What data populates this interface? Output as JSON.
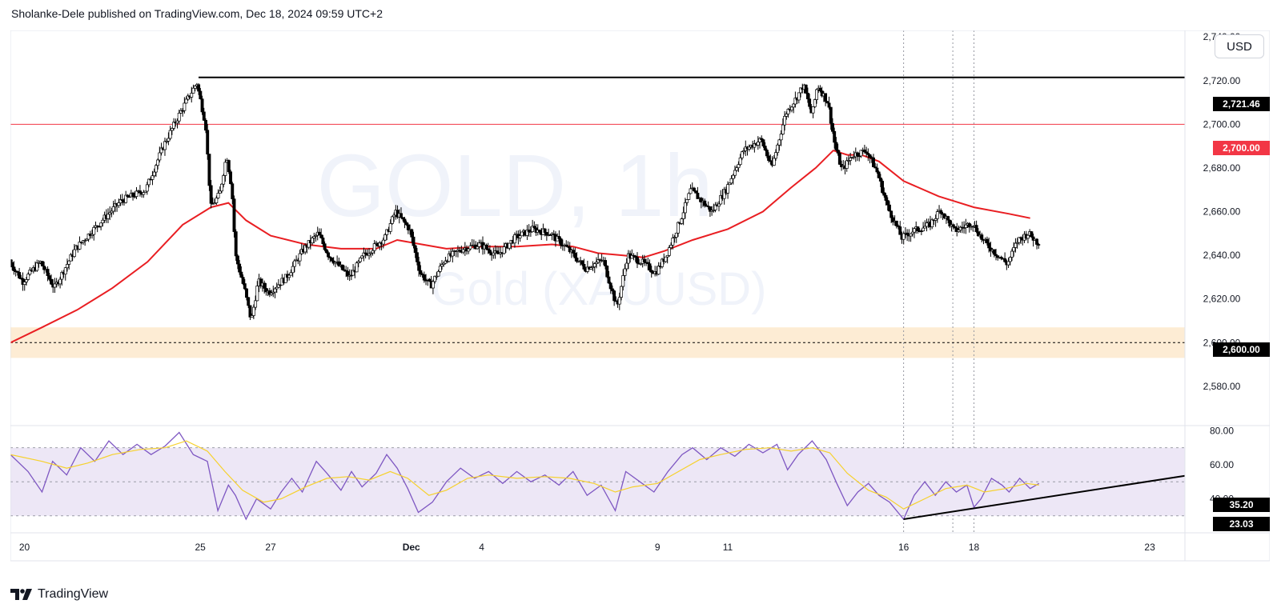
{
  "header": {
    "published_text": "Sholanke-Dele published on TradingView.com, Dec 18, 2024 09:59 UTC+2"
  },
  "watermark": {
    "symbol": "GOLD, 1h",
    "name": "Gold (XAUUSD)"
  },
  "currency_button": "USD",
  "footer": {
    "brand": "TradingView"
  },
  "colors": {
    "resistance_line": "#000000",
    "level_2700": "#f23645",
    "ma_line": "#e91e22",
    "support_zone": "#fdecd4",
    "rsi_line": "#7e57c2",
    "rsi_ma": "#f6d12c",
    "rsi_band": "#ede7f6",
    "trendline": "#000000",
    "candle": "#000000"
  },
  "price_labels": [
    {
      "text": "2,721.46",
      "value": 2721.46,
      "bg": "#000000"
    },
    {
      "text": "2,700.00",
      "value": 2700.0,
      "bg": "#f23645"
    },
    {
      "text": "2,600.00",
      "value": 2600.0,
      "bg": "#000000"
    }
  ],
  "rsi_labels": [
    {
      "text": "35.20",
      "value": 35.2,
      "bg": "#000000"
    },
    {
      "text": "23.03",
      "value": 23.03,
      "bg": "#000000"
    }
  ],
  "chart_data": [
    {
      "type": "candlestick",
      "title": "GOLD, 1h",
      "subtitle": "Gold (XAUUSD)",
      "currency": "USD",
      "y_ticks": [
        "2,580.00",
        "2,600.00",
        "2,620.00",
        "2,640.00",
        "2,660.00",
        "2,680.00",
        "2,700.00",
        "2,720.00",
        "2,740.00"
      ],
      "y_tick_values": [
        2580,
        2600,
        2620,
        2640,
        2660,
        2680,
        2700,
        2720,
        2740
      ],
      "ylim": [
        2562,
        2743
      ],
      "x_ticks": [
        "20",
        "25",
        "27",
        "Dec",
        "4",
        "9",
        "11",
        "16",
        "18",
        "23"
      ],
      "x_tick_positions": [
        0.0,
        5.0,
        7.0,
        11.0,
        13.0,
        18.0,
        20.0,
        25.0,
        27.0,
        32.0
      ],
      "xlim": [
        -0.4,
        33.0
      ],
      "horizontal_levels": [
        {
          "label": "2,721.46",
          "value": 2721.46,
          "from_x": 4.95
        },
        {
          "label": "2,700.00",
          "value": 2700.0,
          "from_x": -0.4
        },
        {
          "label": "2,600.00",
          "value": 2600.0,
          "from_x": -0.4,
          "style": "dashed"
        }
      ],
      "support_zone": [
        2593,
        2607
      ],
      "vertical_markers_x": [
        25.0,
        26.4,
        27.0
      ],
      "price_path": [
        [
          -0.4,
          2638
        ],
        [
          0.0,
          2628
        ],
        [
          0.5,
          2637
        ],
        [
          0.9,
          2625
        ],
        [
          1.5,
          2643
        ],
        [
          2.2,
          2655
        ],
        [
          2.8,
          2665
        ],
        [
          3.5,
          2670
        ],
        [
          4.0,
          2690
        ],
        [
          4.5,
          2706
        ],
        [
          4.95,
          2719
        ],
        [
          5.2,
          2700
        ],
        [
          5.35,
          2662
        ],
        [
          5.6,
          2668
        ],
        [
          5.8,
          2686
        ],
        [
          5.95,
          2670
        ],
        [
          6.05,
          2640
        ],
        [
          6.3,
          2625
        ],
        [
          6.5,
          2610
        ],
        [
          6.7,
          2628
        ],
        [
          7.0,
          2623
        ],
        [
          7.5,
          2630
        ],
        [
          8.0,
          2643
        ],
        [
          8.4,
          2650
        ],
        [
          8.7,
          2640
        ],
        [
          9.3,
          2630
        ],
        [
          9.7,
          2640
        ],
        [
          10.3,
          2648
        ],
        [
          10.6,
          2660
        ],
        [
          11.0,
          2652
        ],
        [
          11.3,
          2632
        ],
        [
          11.6,
          2626
        ],
        [
          12.0,
          2638
        ],
        [
          12.5,
          2643
        ],
        [
          13.0,
          2645
        ],
        [
          13.5,
          2640
        ],
        [
          14.0,
          2648
        ],
        [
          14.5,
          2652
        ],
        [
          15.0,
          2650
        ],
        [
          15.5,
          2643
        ],
        [
          16.0,
          2634
        ],
        [
          16.5,
          2638
        ],
        [
          16.9,
          2616
        ],
        [
          17.2,
          2640
        ],
        [
          17.6,
          2637
        ],
        [
          18.0,
          2632
        ],
        [
          18.3,
          2640
        ],
        [
          18.7,
          2656
        ],
        [
          19.0,
          2670
        ],
        [
          19.6,
          2660
        ],
        [
          20.0,
          2670
        ],
        [
          20.5,
          2688
        ],
        [
          21.0,
          2693
        ],
        [
          21.3,
          2680
        ],
        [
          21.7,
          2705
        ],
        [
          22.0,
          2712
        ],
        [
          22.2,
          2718
        ],
        [
          22.45,
          2704
        ],
        [
          22.6,
          2718
        ],
        [
          22.9,
          2710
        ],
        [
          23.1,
          2690
        ],
        [
          23.3,
          2679
        ],
        [
          23.6,
          2686
        ],
        [
          24.0,
          2688
        ],
        [
          24.3,
          2678
        ],
        [
          24.6,
          2662
        ],
        [
          25.0,
          2648
        ],
        [
          25.3,
          2651
        ],
        [
          25.8,
          2654
        ],
        [
          26.1,
          2661
        ],
        [
          26.5,
          2651
        ],
        [
          27.0,
          2655
        ],
        [
          27.3,
          2647
        ],
        [
          27.6,
          2642
        ],
        [
          28.0,
          2636
        ],
        [
          28.3,
          2647
        ],
        [
          28.6,
          2650
        ],
        [
          28.85,
          2646
        ]
      ],
      "ma_line": [
        [
          -0.4,
          2600
        ],
        [
          0.5,
          2607
        ],
        [
          1.5,
          2615
        ],
        [
          2.5,
          2625
        ],
        [
          3.5,
          2637
        ],
        [
          4.5,
          2654
        ],
        [
          5.3,
          2662
        ],
        [
          5.8,
          2664
        ],
        [
          6.3,
          2656
        ],
        [
          7.0,
          2649
        ],
        [
          8.0,
          2645
        ],
        [
          9.0,
          2643
        ],
        [
          10.0,
          2643
        ],
        [
          10.6,
          2647
        ],
        [
          11.3,
          2645
        ],
        [
          12.0,
          2643
        ],
        [
          13.0,
          2644
        ],
        [
          14.0,
          2644
        ],
        [
          15.0,
          2645
        ],
        [
          15.6,
          2644
        ],
        [
          16.3,
          2641
        ],
        [
          17.0,
          2640
        ],
        [
          17.6,
          2639
        ],
        [
          18.2,
          2642
        ],
        [
          19.0,
          2647
        ],
        [
          20.0,
          2652
        ],
        [
          21.0,
          2660
        ],
        [
          21.8,
          2671
        ],
        [
          22.5,
          2680
        ],
        [
          23.0,
          2688
        ],
        [
          23.4,
          2686
        ],
        [
          23.8,
          2686
        ],
        [
          24.3,
          2683
        ],
        [
          25.0,
          2674
        ],
        [
          26.0,
          2667
        ],
        [
          27.0,
          2662
        ],
        [
          28.0,
          2659
        ],
        [
          28.6,
          2657
        ]
      ],
      "ma_color": "#e91e22"
    },
    {
      "type": "line",
      "title": "RSI",
      "y_ticks": [
        "40.00",
        "60.00",
        "80.00"
      ],
      "y_tick_values": [
        40,
        60,
        80
      ],
      "ylim": [
        20,
        83
      ],
      "band": [
        30,
        70
      ],
      "mid": 50,
      "series": [
        {
          "values": [
            [
              -0.4,
              66
            ],
            [
              0.1,
              56
            ],
            [
              0.5,
              44
            ],
            [
              0.8,
              62
            ],
            [
              1.2,
              54
            ],
            [
              1.6,
              70
            ],
            [
              2.0,
              62
            ],
            [
              2.4,
              74
            ],
            [
              2.8,
              66
            ],
            [
              3.2,
              72
            ],
            [
              3.6,
              66
            ],
            [
              4.0,
              71
            ],
            [
              4.4,
              79
            ],
            [
              4.8,
              66
            ],
            [
              5.2,
              62
            ],
            [
              5.5,
              33
            ],
            [
              5.8,
              48
            ],
            [
              6.0,
              42
            ],
            [
              6.3,
              28
            ],
            [
              6.6,
              40
            ],
            [
              7.0,
              34
            ],
            [
              7.3,
              44
            ],
            [
              7.6,
              52
            ],
            [
              7.9,
              44
            ],
            [
              8.3,
              62
            ],
            [
              8.6,
              55
            ],
            [
              9.0,
              45
            ],
            [
              9.3,
              56
            ],
            [
              9.6,
              47
            ],
            [
              10.0,
              55
            ],
            [
              10.3,
              66
            ],
            [
              10.6,
              58
            ],
            [
              10.9,
              46
            ],
            [
              11.2,
              32
            ],
            [
              11.6,
              38
            ],
            [
              12.0,
              50
            ],
            [
              12.4,
              58
            ],
            [
              12.8,
              52
            ],
            [
              13.2,
              56
            ],
            [
              13.6,
              49
            ],
            [
              14.0,
              56
            ],
            [
              14.4,
              50
            ],
            [
              14.8,
              54
            ],
            [
              15.2,
              48
            ],
            [
              15.6,
              56
            ],
            [
              16.0,
              42
            ],
            [
              16.4,
              48
            ],
            [
              16.8,
              33
            ],
            [
              17.1,
              56
            ],
            [
              17.5,
              50
            ],
            [
              17.9,
              44
            ],
            [
              18.3,
              56
            ],
            [
              18.7,
              66
            ],
            [
              19.0,
              70
            ],
            [
              19.4,
              63
            ],
            [
              19.8,
              70
            ],
            [
              20.2,
              65
            ],
            [
              20.6,
              72
            ],
            [
              21.0,
              67
            ],
            [
              21.4,
              72
            ],
            [
              21.7,
              57
            ],
            [
              22.0,
              66
            ],
            [
              22.4,
              74
            ],
            [
              22.8,
              63
            ],
            [
              23.1,
              49
            ],
            [
              23.4,
              36
            ],
            [
              23.7,
              44
            ],
            [
              24.0,
              49
            ],
            [
              24.3,
              42
            ],
            [
              24.6,
              38
            ],
            [
              25.0,
              28
            ],
            [
              25.3,
              42
            ],
            [
              25.6,
              50
            ],
            [
              25.9,
              42
            ],
            [
              26.2,
              50
            ],
            [
              26.5,
              44
            ],
            [
              26.8,
              48
            ],
            [
              27.0,
              35
            ],
            [
              27.2,
              40
            ],
            [
              27.5,
              52
            ],
            [
              27.8,
              48
            ],
            [
              28.0,
              44
            ],
            [
              28.3,
              52
            ],
            [
              28.6,
              46
            ],
            [
              28.85,
              49
            ]
          ],
          "color": "#7e57c2"
        },
        {
          "values": [
            [
              -0.4,
              66
            ],
            [
              0.5,
              62
            ],
            [
              1.2,
              58
            ],
            [
              1.8,
              61
            ],
            [
              2.5,
              66
            ],
            [
              3.3,
              69
            ],
            [
              4.0,
              70
            ],
            [
              4.6,
              74
            ],
            [
              5.2,
              68
            ],
            [
              5.7,
              56
            ],
            [
              6.2,
              45
            ],
            [
              6.8,
              38
            ],
            [
              7.3,
              40
            ],
            [
              8.0,
              47
            ],
            [
              8.6,
              52
            ],
            [
              9.2,
              53
            ],
            [
              9.8,
              51
            ],
            [
              10.4,
              56
            ],
            [
              10.9,
              52
            ],
            [
              11.5,
              42
            ],
            [
              12.0,
              45
            ],
            [
              12.6,
              52
            ],
            [
              13.2,
              54
            ],
            [
              14.0,
              52
            ],
            [
              14.8,
              53
            ],
            [
              15.5,
              52
            ],
            [
              16.2,
              49
            ],
            [
              16.8,
              44
            ],
            [
              17.3,
              47
            ],
            [
              18.0,
              49
            ],
            [
              18.6,
              56
            ],
            [
              19.2,
              63
            ],
            [
              19.8,
              66
            ],
            [
              20.5,
              69
            ],
            [
              21.2,
              70
            ],
            [
              21.8,
              68
            ],
            [
              22.4,
              70
            ],
            [
              22.9,
              67
            ],
            [
              23.4,
              55
            ],
            [
              24.0,
              45
            ],
            [
              24.5,
              41
            ],
            [
              25.0,
              34
            ],
            [
              25.6,
              40
            ],
            [
              26.2,
              46
            ],
            [
              26.8,
              48
            ],
            [
              27.3,
              44
            ],
            [
              27.9,
              46
            ],
            [
              28.5,
              49
            ],
            [
              28.85,
              48
            ]
          ],
          "color": "#f6d12c"
        }
      ],
      "trendline": [
        [
          25.0,
          28.0
        ],
        [
          33.0,
          53.5
        ]
      ]
    }
  ]
}
